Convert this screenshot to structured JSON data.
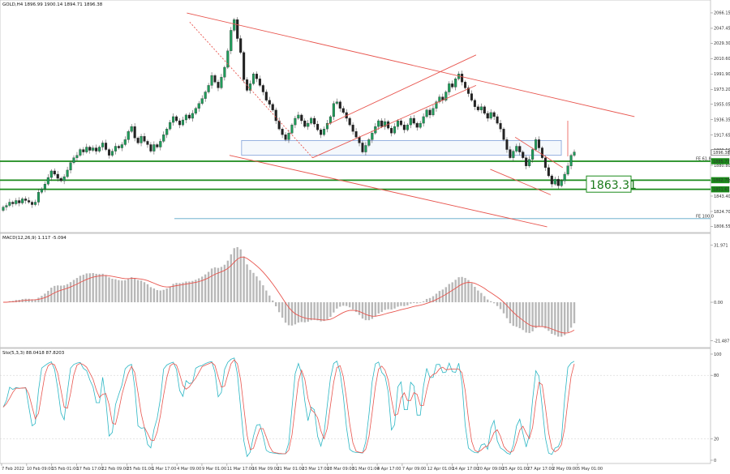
{
  "chart_data": [
    {
      "type": "candlestick",
      "title": "GOLD,H4 1896.99 1900.14 1894.71 1896.38",
      "x_ticks": [
        "7 Feb 2022",
        "10 Feb 09:00",
        "15 Feb 01:00",
        "17 Feb 17:00",
        "22 Feb 09:00",
        "25 Feb 01:00",
        "1 Mar 17:00",
        "4 Mar 09:00",
        "9 Mar 01:00",
        "11 Mar 17:00",
        "16 Mar 09:00",
        "21 Mar 01:00",
        "23 Mar 17:00",
        "28 Mar 09:00",
        "31 Mar 01:00",
        "4 Apr 17:00",
        "7 Apr 09:00",
        "12 Apr 01:00",
        "14 Apr 17:00",
        "20 Apr 09:00",
        "25 Apr 01:00",
        "27 Apr 17:00",
        "2 May 09:00",
        "5 May 01:00"
      ],
      "y_ticks": [
        2066.15,
        2047.45,
        2029.3,
        2010.6,
        1991.9,
        1973.2,
        1955.05,
        1936.35,
        1917.65,
        1899.5,
        1880.8,
        1862.1,
        1843.4,
        1824.7,
        1806.55
      ],
      "ylim": [
        1802,
        2072
      ],
      "price_labels": {
        "current": "1896.38",
        "fe618": "1885.77",
        "level2": "1862.70",
        "level3": "1851.61"
      },
      "levels": [
        {
          "label": "FE 61.8",
          "value": 1885.77
        },
        {
          "value": 1862.7
        },
        {
          "value": 1851.61
        },
        {
          "label": "FE 100.0",
          "value": 1816.0
        }
      ],
      "annotation": "1863.31",
      "candles": [
        [
          1826,
          1830
        ],
        [
          1830,
          1832
        ],
        [
          1832,
          1836
        ],
        [
          1836,
          1834
        ],
        [
          1834,
          1838
        ],
        [
          1838,
          1835
        ],
        [
          1835,
          1840
        ],
        [
          1840,
          1838
        ],
        [
          1838,
          1836
        ],
        [
          1836,
          1833
        ],
        [
          1833,
          1836
        ],
        [
          1836,
          1848
        ],
        [
          1848,
          1852
        ],
        [
          1852,
          1858
        ],
        [
          1858,
          1866
        ],
        [
          1866,
          1874
        ],
        [
          1874,
          1870
        ],
        [
          1870,
          1865
        ],
        [
          1865,
          1862
        ],
        [
          1862,
          1867
        ],
        [
          1867,
          1875
        ],
        [
          1875,
          1884
        ],
        [
          1884,
          1890
        ],
        [
          1890,
          1893
        ],
        [
          1893,
          1900
        ],
        [
          1900,
          1897
        ],
        [
          1897,
          1903
        ],
        [
          1903,
          1899
        ],
        [
          1899,
          1902
        ],
        [
          1902,
          1898
        ],
        [
          1898,
          1903
        ],
        [
          1903,
          1908
        ],
        [
          1908,
          1900
        ],
        [
          1900,
          1893
        ],
        [
          1893,
          1898
        ],
        [
          1898,
          1904
        ],
        [
          1904,
          1902
        ],
        [
          1902,
          1906
        ],
        [
          1906,
          1912
        ],
        [
          1912,
          1922
        ],
        [
          1922,
          1928
        ],
        [
          1928,
          1914
        ],
        [
          1914,
          1908
        ],
        [
          1908,
          1916
        ],
        [
          1916,
          1910
        ],
        [
          1910,
          1906
        ],
        [
          1906,
          1898
        ],
        [
          1898,
          1906
        ],
        [
          1906,
          1903
        ],
        [
          1903,
          1910
        ],
        [
          1910,
          1918
        ],
        [
          1918,
          1925
        ],
        [
          1925,
          1933
        ],
        [
          1933,
          1940
        ],
        [
          1940,
          1935
        ],
        [
          1935,
          1930
        ],
        [
          1930,
          1936
        ],
        [
          1936,
          1942
        ],
        [
          1942,
          1938
        ],
        [
          1938,
          1944
        ],
        [
          1944,
          1950
        ],
        [
          1950,
          1956
        ],
        [
          1956,
          1962
        ],
        [
          1962,
          1970
        ],
        [
          1970,
          1978
        ],
        [
          1978,
          1990
        ],
        [
          1990,
          1982
        ],
        [
          1982,
          1975
        ],
        [
          1975,
          1988
        ],
        [
          1988,
          2000
        ],
        [
          2000,
          2020
        ],
        [
          2020,
          2045
        ],
        [
          2045,
          2058
        ],
        [
          2058,
          2035
        ],
        [
          2035,
          2018
        ],
        [
          2018,
          1985
        ],
        [
          1985,
          1972
        ],
        [
          1972,
          1980
        ],
        [
          1980,
          1992
        ],
        [
          1992,
          1986
        ],
        [
          1986,
          1978
        ],
        [
          1978,
          1970
        ],
        [
          1970,
          1960
        ],
        [
          1960,
          1955
        ],
        [
          1955,
          1948
        ],
        [
          1948,
          1935
        ],
        [
          1935,
          1925
        ],
        [
          1925,
          1918
        ],
        [
          1918,
          1912
        ],
        [
          1912,
          1920
        ],
        [
          1920,
          1930
        ],
        [
          1930,
          1938
        ],
        [
          1938,
          1942
        ],
        [
          1942,
          1935
        ],
        [
          1935,
          1928
        ],
        [
          1928,
          1932
        ],
        [
          1932,
          1938
        ],
        [
          1938,
          1931
        ],
        [
          1931,
          1924
        ],
        [
          1924,
          1918
        ],
        [
          1918,
          1925
        ],
        [
          1925,
          1932
        ],
        [
          1932,
          1940
        ],
        [
          1940,
          1956
        ],
        [
          1956,
          1958
        ],
        [
          1958,
          1950
        ],
        [
          1950,
          1945
        ],
        [
          1945,
          1938
        ],
        [
          1938,
          1930
        ],
        [
          1930,
          1922
        ],
        [
          1922,
          1915
        ],
        [
          1915,
          1908
        ],
        [
          1908,
          1897
        ],
        [
          1897,
          1905
        ],
        [
          1905,
          1912
        ],
        [
          1912,
          1920
        ],
        [
          1920,
          1928
        ],
        [
          1928,
          1935
        ],
        [
          1935,
          1928
        ],
        [
          1928,
          1934
        ],
        [
          1934,
          1926
        ],
        [
          1926,
          1920
        ],
        [
          1920,
          1928
        ],
        [
          1928,
          1935
        ],
        [
          1935,
          1930
        ],
        [
          1930,
          1924
        ],
        [
          1924,
          1930
        ],
        [
          1930,
          1938
        ],
        [
          1938,
          1932
        ],
        [
          1932,
          1927
        ],
        [
          1927,
          1932
        ],
        [
          1932,
          1940
        ],
        [
          1940,
          1948
        ],
        [
          1948,
          1942
        ],
        [
          1942,
          1950
        ],
        [
          1950,
          1958
        ],
        [
          1958,
          1964
        ],
        [
          1964,
          1960
        ],
        [
          1960,
          1970
        ],
        [
          1970,
          1980
        ],
        [
          1980,
          1976
        ],
        [
          1976,
          1986
        ],
        [
          1986,
          1992
        ],
        [
          1992,
          1982
        ],
        [
          1982,
          1975
        ],
        [
          1975,
          1968
        ],
        [
          1968,
          1960
        ],
        [
          1960,
          1952
        ],
        [
          1952,
          1948
        ],
        [
          1948,
          1952
        ],
        [
          1952,
          1944
        ],
        [
          1944,
          1938
        ],
        [
          1938,
          1945
        ],
        [
          1945,
          1940
        ],
        [
          1940,
          1932
        ],
        [
          1932,
          1925
        ],
        [
          1925,
          1912
        ],
        [
          1912,
          1900
        ],
        [
          1900,
          1890
        ],
        [
          1890,
          1898
        ],
        [
          1898,
          1904
        ],
        [
          1904,
          1897
        ],
        [
          1897,
          1890
        ],
        [
          1890,
          1880
        ],
        [
          1880,
          1888
        ],
        [
          1888,
          1900
        ],
        [
          1900,
          1912
        ],
        [
          1912,
          1902
        ],
        [
          1902,
          1890
        ],
        [
          1890,
          1878
        ],
        [
          1878,
          1868
        ],
        [
          1868,
          1858
        ],
        [
          1858,
          1864
        ],
        [
          1864,
          1856
        ],
        [
          1856,
          1862
        ],
        [
          1862,
          1870
        ],
        [
          1870,
          1880
        ],
        [
          1880,
          1893
        ],
        [
          1893,
          1897
        ]
      ],
      "trendlines": [
        {
          "from": [
            0.263,
            2066
          ],
          "to": [
            0.893,
            1940
          ]
        },
        {
          "from": [
            0.323,
            1893
          ],
          "to": [
            0.77,
            1806
          ]
        },
        {
          "from": [
            0.267,
            2055
          ],
          "to": [
            0.44,
            1890
          ]
        },
        {
          "from": [
            0.44,
            1890
          ],
          "to": [
            0.67,
            1978
          ]
        },
        {
          "from": [
            0.46,
            1930
          ],
          "to": [
            0.67,
            2015
          ]
        },
        {
          "from": [
            0.725,
            1915
          ],
          "to": [
            0.792,
            1878
          ]
        },
        {
          "from": [
            0.69,
            1876
          ],
          "to": [
            0.775,
            1845
          ]
        }
      ],
      "zones": [
        {
          "x": [
            0.34,
            0.79
          ],
          "y": [
            1893,
            1911
          ]
        }
      ]
    },
    {
      "type": "bar+line",
      "title": "MACD(12,26,9) 1.117 -5.094",
      "y_ticks": [
        31.971,
        0.0,
        -21.487
      ],
      "ylim": [
        -24,
        34
      ]
    },
    {
      "type": "line",
      "title": "Sto(5,3,3) 88.0418 87.8203",
      "y_ticks": [
        100,
        80,
        20,
        0
      ],
      "ylim": [
        0,
        100
      ]
    }
  ]
}
